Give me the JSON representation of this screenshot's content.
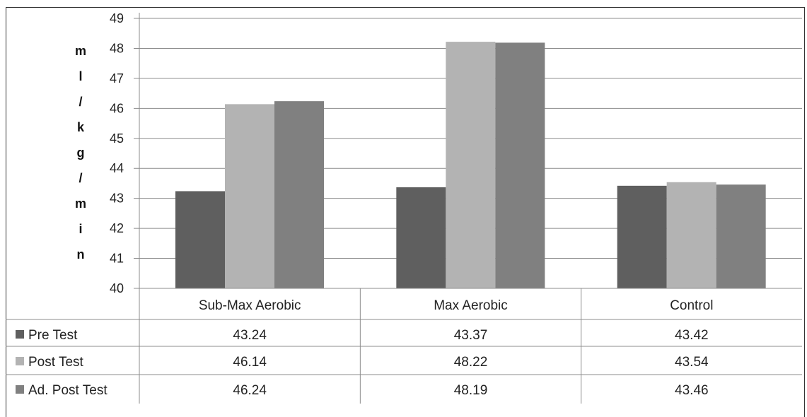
{
  "chart_data": {
    "type": "bar",
    "categories": [
      "Sub-Max Aerobic",
      "Max Aerobic",
      "Control"
    ],
    "series": [
      {
        "name": "Pre Test",
        "values": [
          43.24,
          43.37,
          43.42
        ],
        "color": "#5f5f5f"
      },
      {
        "name": "Post Test",
        "values": [
          46.14,
          48.22,
          43.54
        ],
        "color": "#b3b3b3"
      },
      {
        "name": "Ad. Post Test",
        "values": [
          46.24,
          48.19,
          43.46
        ],
        "color": "#808080"
      }
    ],
    "ylabel_chars": [
      "m",
      "l",
      "/",
      "k",
      "g",
      "/",
      "m",
      "i",
      "n"
    ],
    "ylim": [
      40,
      49
    ],
    "yticks": [
      "40",
      "41",
      "42",
      "43",
      "44",
      "45",
      "46",
      "47",
      "48",
      "49"
    ],
    "grid": true,
    "legend": "data-table",
    "table_values": [
      [
        "43.24",
        "43.37",
        "43.42"
      ],
      [
        "46.14",
        "48.22",
        "43.54"
      ],
      [
        "46.24",
        "48.19",
        "43.46"
      ]
    ]
  }
}
